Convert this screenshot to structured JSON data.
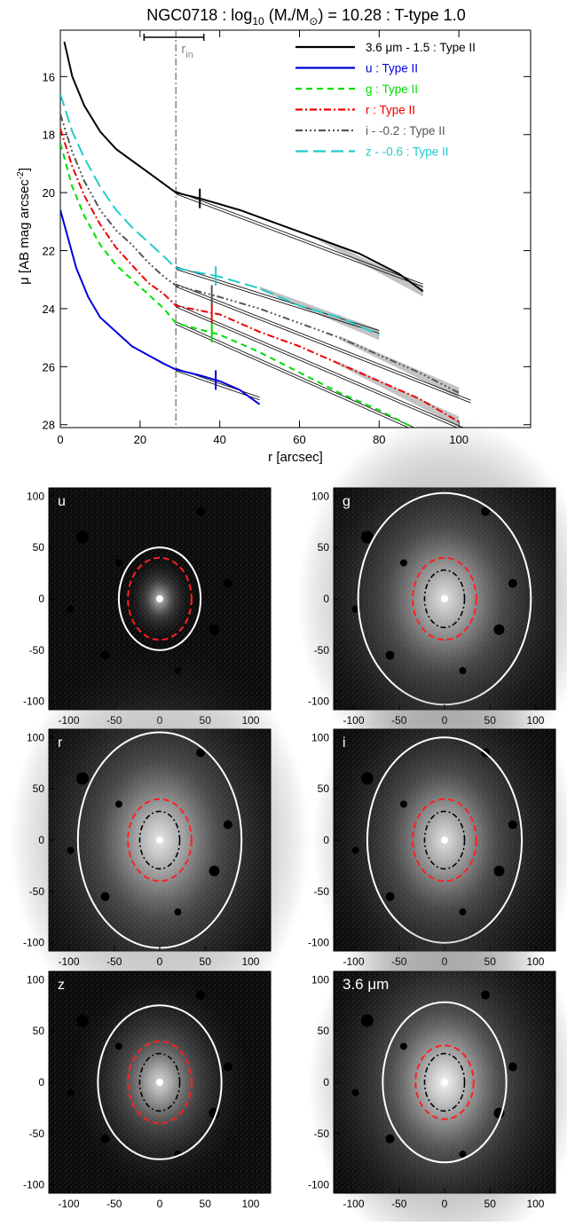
{
  "chart_data": [
    {
      "type": "line",
      "title": "NGC0718 : log",
      "title_sub": "10",
      "title_mid": " (M",
      "title_star": "*",
      "title_slash": "/M",
      "title_sun": "⊙",
      "title_end": ") = 10.28 : T-type 1.0",
      "xlabel": "r [arcsec]",
      "ylabel": "μ [AB mag arcsec",
      "ylabel_sup": "-2",
      "ylabel_end": "]",
      "xlim": [
        0,
        118
      ],
      "ylim": [
        28.1,
        14.4
      ],
      "xticks": [
        "0",
        "20",
        "40",
        "60",
        "80",
        "100"
      ],
      "yticks": [
        "16",
        "18",
        "20",
        "22",
        "24",
        "26",
        "28"
      ],
      "r_in_label": "r",
      "r_in_sub": "in",
      "r_in": 29,
      "r_in_err": [
        21,
        36
      ],
      "series": [
        {
          "name": "3.6 μm - 1.5 : Type II",
          "color": "#000000",
          "dash": "",
          "x": [
            1,
            3,
            6,
            10,
            14,
            18,
            22,
            26,
            29,
            35,
            45,
            55,
            65,
            75,
            85,
            91
          ],
          "y": [
            14.8,
            16.0,
            17.0,
            17.9,
            18.5,
            18.9,
            19.3,
            19.7,
            20.0,
            20.2,
            20.6,
            21.1,
            21.6,
            22.1,
            22.8,
            23.4
          ],
          "break": 35,
          "fit": [
            [
              29,
              20.0
            ],
            [
              91,
              23.2
            ]
          ],
          "band": true
        },
        {
          "name": "u : Type II",
          "color": "#0000dd",
          "dash": "",
          "x": [
            0,
            2,
            4,
            7,
            10,
            14,
            18,
            22,
            26,
            29,
            35,
            40,
            45,
            50
          ],
          "y": [
            20.6,
            21.6,
            22.6,
            23.6,
            24.3,
            24.8,
            25.3,
            25.6,
            25.9,
            26.1,
            26.3,
            26.5,
            26.8,
            27.3
          ],
          "break": 39,
          "fit": [
            [
              29,
              26.1
            ],
            [
              50,
              27.1
            ]
          ],
          "band": false
        },
        {
          "name": "g : Type II",
          "color": "#00dd00",
          "dash": "7,5",
          "x": [
            0,
            3,
            6,
            10,
            14,
            18,
            22,
            26,
            29,
            40,
            50,
            60,
            70,
            80,
            90,
            93
          ],
          "y": [
            18.3,
            19.8,
            20.8,
            21.8,
            22.5,
            23.0,
            23.5,
            24.0,
            24.5,
            24.9,
            25.5,
            26.2,
            26.9,
            27.5,
            28.2,
            28.4
          ],
          "break": 38,
          "fit": [
            [
              29,
              24.5
            ],
            [
              93,
              28.4
            ]
          ],
          "band": false
        },
        {
          "name": "r : Type II",
          "color": "#ee0000",
          "dash": "8,3,2,3",
          "x": [
            0,
            3,
            6,
            10,
            14,
            18,
            22,
            26,
            29,
            40,
            50,
            60,
            70,
            80,
            90,
            100
          ],
          "y": [
            17.8,
            19.1,
            20.1,
            21.1,
            21.9,
            22.5,
            23.1,
            23.5,
            23.9,
            24.2,
            24.8,
            25.3,
            25.9,
            26.5,
            27.1,
            27.9
          ],
          "break": 38,
          "fit": [
            [
              29,
              23.9
            ],
            [
              102,
              28.2
            ]
          ],
          "band": true
        },
        {
          "name": "i - -0.2 : Type II",
          "color": "#555555",
          "dash": "8,3,2,3,2,3,2,3",
          "x": [
            0,
            3,
            6,
            10,
            14,
            18,
            22,
            26,
            29,
            40,
            50,
            60,
            70,
            80,
            90,
            100
          ],
          "y": [
            17.3,
            18.6,
            19.6,
            20.6,
            21.3,
            21.8,
            22.4,
            22.9,
            23.2,
            23.6,
            24.0,
            24.5,
            25.0,
            25.6,
            26.2,
            26.9
          ],
          "break": 38,
          "fit": [
            [
              29,
              23.2
            ],
            [
              103,
              27.2
            ]
          ],
          "band": true
        },
        {
          "name": "z - -0.6 : Type II",
          "color": "#22cccc",
          "dash": "14,6",
          "x": [
            0,
            3,
            6,
            10,
            14,
            18,
            22,
            26,
            29,
            40,
            50,
            60,
            70,
            80
          ],
          "y": [
            16.6,
            17.9,
            18.8,
            19.8,
            20.6,
            21.2,
            21.7,
            22.2,
            22.6,
            22.9,
            23.3,
            23.9,
            24.3,
            24.9
          ],
          "break": 39,
          "fit": [
            [
              29,
              22.6
            ],
            [
              80,
              24.8
            ]
          ],
          "band": true
        }
      ]
    },
    {
      "type": "image",
      "panels": [
        {
          "label": "u",
          "outer": [
            45,
            50
          ],
          "inner_red": [
            35,
            40
          ],
          "inner_black": null,
          "brightness": 0.35
        },
        {
          "label": "g",
          "outer": [
            95,
            103
          ],
          "inner_red": [
            35,
            40
          ],
          "inner_black": [
            22,
            28
          ],
          "brightness": 0.7
        },
        {
          "label": "r",
          "outer": [
            90,
            105
          ],
          "inner_red": [
            35,
            40
          ],
          "inner_black": [
            22,
            28
          ],
          "brightness": 0.75
        },
        {
          "label": "i",
          "outer": [
            85,
            100
          ],
          "inner_red": [
            35,
            40
          ],
          "inner_black": [
            22,
            28
          ],
          "brightness": 0.7
        },
        {
          "label": "z",
          "outer": [
            68,
            75
          ],
          "inner_red": [
            35,
            40
          ],
          "inner_black": [
            22,
            28
          ],
          "brightness": 0.6
        },
        {
          "label": "3.6 μm",
          "outer": [
            68,
            78
          ],
          "inner_red": [
            32,
            36
          ],
          "inner_black": [
            22,
            28
          ],
          "brightness": 0.9
        }
      ],
      "xticks": [
        "-100",
        "-50",
        "0",
        "50",
        "100"
      ],
      "yticks": [
        "100",
        "50",
        "0",
        "-50",
        "-100"
      ],
      "xlim": [
        -122,
        122
      ],
      "ylim": [
        -108,
        108
      ]
    }
  ]
}
